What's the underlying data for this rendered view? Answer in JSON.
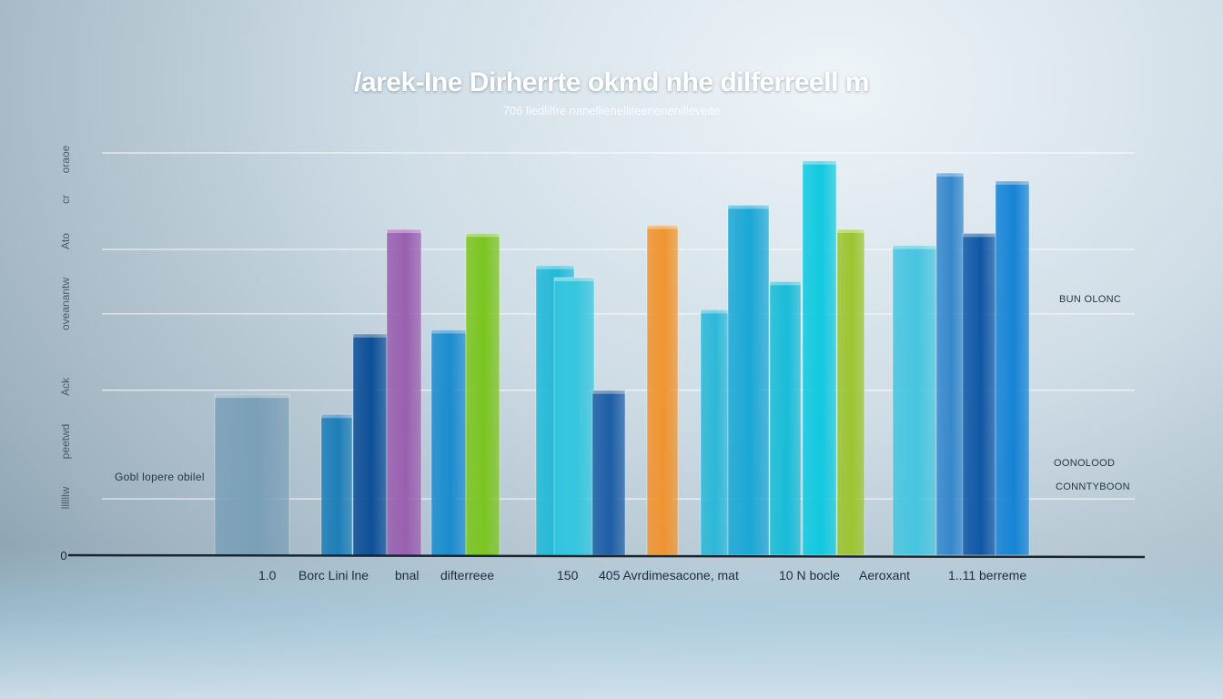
{
  "title": "/arek-Ine Dirherrte okmd nhe dilferreell m",
  "subtitle": "706 liedlilfre nanellienelliteenenenilleveite",
  "chart_data": {
    "type": "bar",
    "ylim": [
      0,
      100
    ],
    "grid": true,
    "y_ticks": [
      "0",
      "",
      "",
      "",
      "",
      "",
      "",
      ""
    ],
    "y_side_labels": [
      "oraoe",
      "cr",
      "Ato",
      "oveanantw",
      "Ack",
      "peetwd",
      "llllllw"
    ],
    "x_tick_labels": [
      "1.0",
      "Borc Lini lne",
      "bnal",
      "difterreee",
      "150",
      "405 Avrdimesacone, mat",
      "10 N bocle",
      "Aeroxant",
      "1..11 berreme"
    ],
    "annotations": [
      "Gobl lopere obilel",
      "BUN OLONC",
      "OONOLOOD",
      "CONNTYBOON"
    ],
    "bars": [
      {
        "category": "g1",
        "value": 40,
        "color": "#7aa0b8"
      },
      {
        "category": "g2",
        "value": 35,
        "color": "#1e7fb8"
      },
      {
        "category": "g3",
        "value": 55,
        "color": "#0d4f98"
      },
      {
        "category": "g4",
        "value": 81,
        "color": "#9a5fb0"
      },
      {
        "category": "g5",
        "value": 56,
        "color": "#1b8ccf"
      },
      {
        "category": "g6",
        "value": 80,
        "color": "#7cc520"
      },
      {
        "category": "g7",
        "value": 72,
        "color": "#22b9d8"
      },
      {
        "category": "g8",
        "value": 69,
        "color": "#35c6df"
      },
      {
        "category": "g9",
        "value": 41,
        "color": "#1d5ea6"
      },
      {
        "category": "g10",
        "value": 82,
        "color": "#f0942f"
      },
      {
        "category": "g11",
        "value": 61,
        "color": "#2cb8d8"
      },
      {
        "category": "g12",
        "value": 87,
        "color": "#1aa7d6"
      },
      {
        "category": "g13",
        "value": 68,
        "color": "#18bcd8"
      },
      {
        "category": "g14",
        "value": 98,
        "color": "#10c9e0"
      },
      {
        "category": "g15",
        "value": 81,
        "color": "#9cc52f"
      },
      {
        "category": "g16",
        "value": 77,
        "color": "#46c5e0"
      },
      {
        "category": "g17",
        "value": 95,
        "color": "#3688cc"
      },
      {
        "category": "g18",
        "value": 80,
        "color": "#0f57a5"
      },
      {
        "category": "g19",
        "value": 93,
        "color": "#1683d6"
      }
    ]
  }
}
